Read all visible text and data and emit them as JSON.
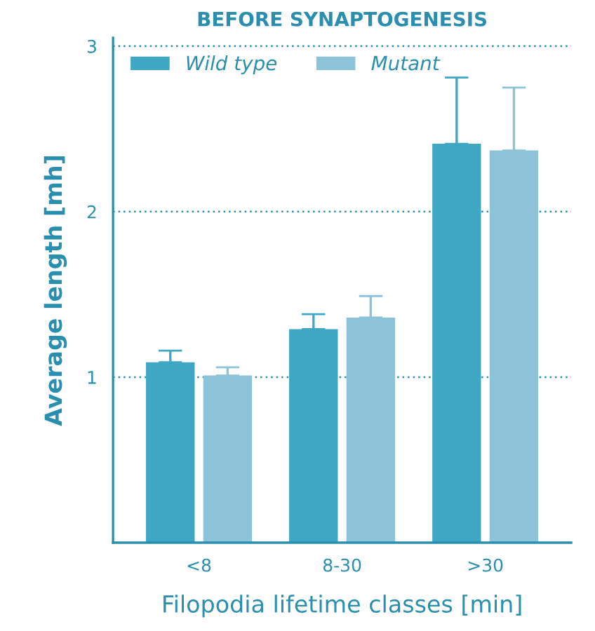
{
  "chart_data": {
    "type": "bar",
    "title": "BEFORE SYNAPTOGENESIS",
    "xlabel": "Filopodia lifetime classes [min]",
    "ylabel": "Average length [mh]",
    "categories": [
      "<8",
      "8-30",
      ">30"
    ],
    "series": [
      {
        "name": "Wild type",
        "color": "#3fa7c4",
        "values": [
          1.09,
          1.29,
          2.41
        ],
        "errors": [
          [
            1.09,
            1.16
          ],
          [
            1.29,
            1.38
          ],
          [
            2.41,
            2.81
          ]
        ]
      },
      {
        "name": "Mutant",
        "color": "#8dc3d8",
        "values": [
          1.01,
          1.36,
          2.37
        ],
        "errors": [
          [
            1.01,
            1.06
          ],
          [
            1.36,
            1.49
          ],
          [
            2.37,
            2.75
          ]
        ]
      }
    ],
    "ylim": [
      0,
      3.05
    ],
    "yticks": [
      1,
      2,
      3
    ],
    "grid": "y",
    "legend": "top left"
  }
}
